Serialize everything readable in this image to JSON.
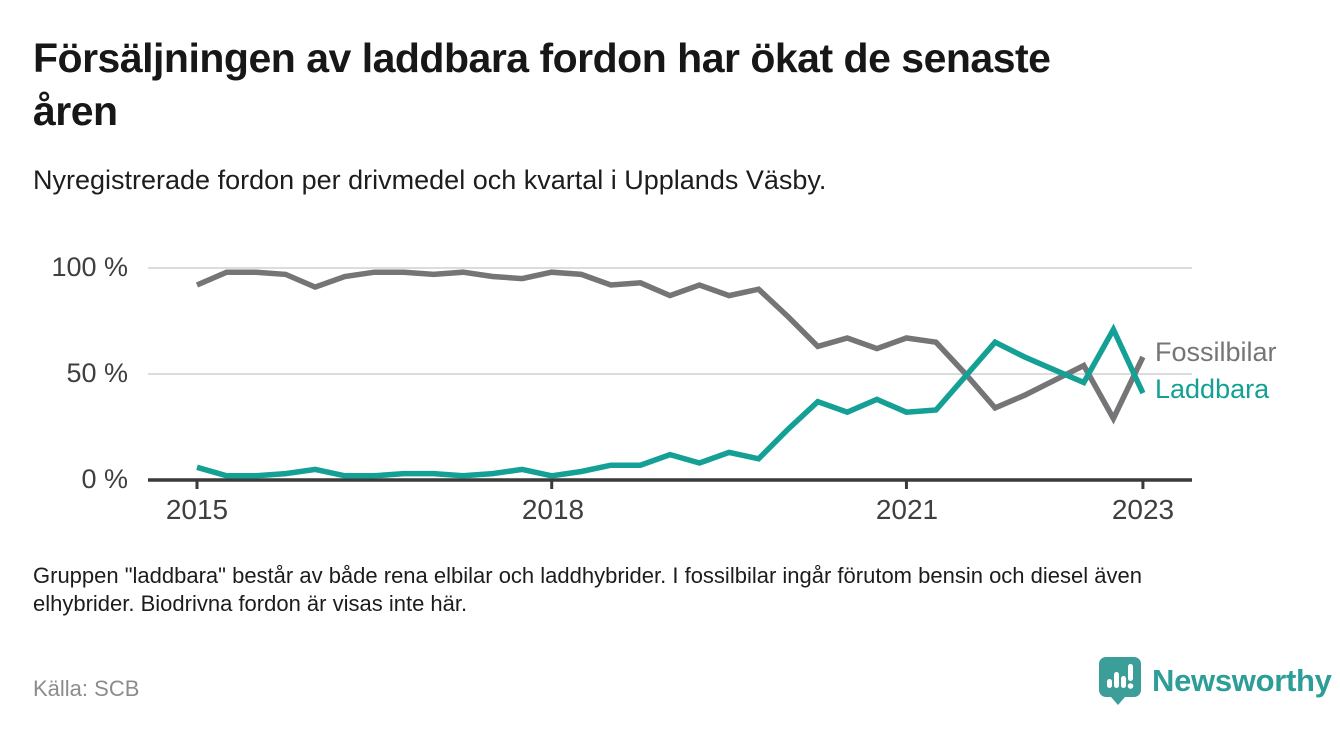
{
  "header": {
    "title_line1": "Försäljningen av laddbara fordon har ökat de senaste",
    "title_line2": "åren",
    "subtitle": "Nyregistrerade fordon per drivmedel och kvartal i Upplands Väsby."
  },
  "chart_data": {
    "type": "line",
    "title": "Nyregistrerade fordon per drivmedel och kvartal i Upplands Väsby",
    "x_unit": "quarter",
    "ylim": [
      0,
      100
    ],
    "grid": true,
    "legend_position": "right-of-line-ends",
    "y_ticks": [
      {
        "label": "0 %",
        "value": 0
      },
      {
        "label": "50 %",
        "value": 50
      },
      {
        "label": "100 %",
        "value": 100
      }
    ],
    "x_ticks": [
      {
        "label": "2015",
        "year": 2015
      },
      {
        "label": "2018",
        "year": 2018
      },
      {
        "label": "2021",
        "year": 2021
      },
      {
        "label": "2023",
        "year": 2023
      }
    ],
    "categories": [
      "2015 Q1",
      "2015 Q2",
      "2015 Q3",
      "2015 Q4",
      "2016 Q1",
      "2016 Q2",
      "2016 Q3",
      "2016 Q4",
      "2017 Q1",
      "2017 Q2",
      "2017 Q3",
      "2017 Q4",
      "2018 Q1",
      "2018 Q2",
      "2018 Q3",
      "2018 Q4",
      "2019 Q1",
      "2019 Q2",
      "2019 Q3",
      "2019 Q4",
      "2020 Q1",
      "2020 Q2",
      "2020 Q3",
      "2020 Q4",
      "2021 Q1",
      "2021 Q2",
      "2021 Q3",
      "2021 Q4",
      "2022 Q1",
      "2022 Q2",
      "2022 Q3",
      "2022 Q4",
      "2023 Q1"
    ],
    "series": [
      {
        "name": "Fossilbilar",
        "color": "#757577",
        "values": [
          92,
          98,
          98,
          97,
          91,
          96,
          98,
          98,
          97,
          98,
          96,
          95,
          98,
          97,
          92,
          93,
          87,
          92,
          87,
          90,
          77,
          63,
          67,
          62,
          67,
          65,
          50,
          34,
          40,
          47,
          54,
          29,
          58
        ]
      },
      {
        "name": "Laddbara",
        "color": "#14a095",
        "values": [
          6,
          2,
          2,
          3,
          5,
          2,
          2,
          3,
          3,
          2,
          3,
          5,
          2,
          4,
          7,
          7,
          12,
          8,
          13,
          10,
          24,
          37,
          32,
          38,
          32,
          33,
          49,
          65,
          58,
          52,
          46,
          71,
          41
        ]
      }
    ],
    "axis_color": "#3a3a3a",
    "gridline_color": "#dcdcdc"
  },
  "footer": {
    "note_line1": "Gruppen \"laddbara\" består av både rena elbilar och laddhybrider. I fossilbilar ingår förutom bensin och diesel även",
    "note_line2": "elhybrider. Biodrivna fordon är visas inte här.",
    "source": "Källa: SCB"
  },
  "branding": {
    "name": "Newsworthy",
    "icon": "newsworthy-logo-icon",
    "icon_color": "#3b9e98",
    "wordmark_color": "#2c9e97"
  }
}
